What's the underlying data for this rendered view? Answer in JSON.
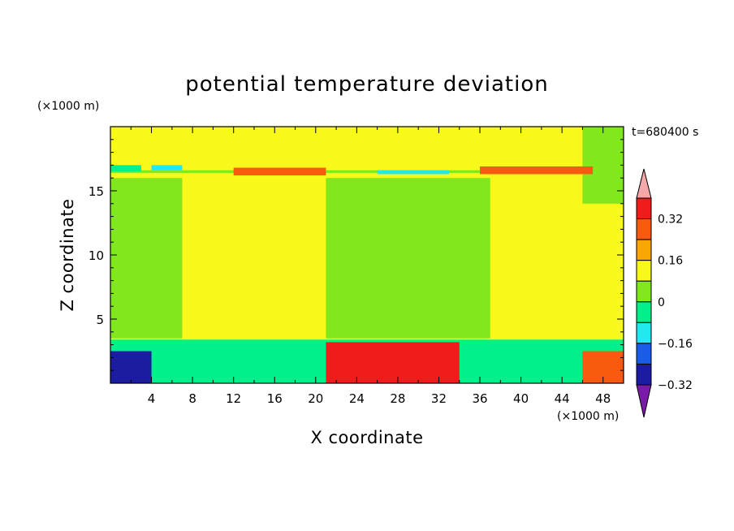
{
  "chart_data": {
    "type": "heatmap",
    "title": "potential temperature deviation",
    "xlabel": "X coordinate",
    "ylabel": "Z coordinate",
    "x_unit_label": "(×1000 m)",
    "y_unit_label": "(×1000 m)",
    "time_label": "t=680400 s",
    "xlim": [
      0,
      50
    ],
    "ylim": [
      0,
      20
    ],
    "x_ticks": [
      4,
      8,
      12,
      16,
      20,
      24,
      28,
      32,
      36,
      40,
      44,
      48
    ],
    "x_tick_labels": [
      "4",
      "8",
      "12",
      "16",
      "20",
      "24",
      "28",
      "32",
      "36",
      "40",
      "44",
      "48"
    ],
    "y_ticks": [
      5,
      10,
      15
    ],
    "y_tick_labels": [
      "5",
      "10",
      "15"
    ],
    "colorbar": {
      "levels": [
        -0.4,
        -0.32,
        -0.24,
        -0.16,
        -0.08,
        0,
        0.08,
        0.16,
        0.24,
        0.32,
        0.4
      ],
      "colors": [
        "#7a1aa8",
        "#1c1ca0",
        "#1a5ce8",
        "#22e8f0",
        "#00f08c",
        "#80e81c",
        "#f8f81a",
        "#f8a800",
        "#f85a10",
        "#f01c1c",
        "#f4a8a8"
      ],
      "tick_values": [
        0.32,
        0.16,
        0,
        -0.16,
        -0.32
      ],
      "tick_labels": [
        "0.32",
        "0.16",
        "0",
        "−0.16",
        "−0.32"
      ],
      "extend": "both"
    },
    "field_regions": [
      {
        "x_range": [
          0,
          50
        ],
        "z_range": [
          0,
          20
        ],
        "value": 0.02,
        "note": "background"
      },
      {
        "x_range": [
          21,
          37
        ],
        "z_range": [
          3.5,
          16
        ],
        "value": -0.04
      },
      {
        "x_range": [
          0,
          7
        ],
        "z_range": [
          3.5,
          16
        ],
        "value": -0.04
      },
      {
        "x_range": [
          46,
          50
        ],
        "z_range": [
          14,
          20
        ],
        "value": -0.04
      },
      {
        "x_range": [
          0,
          50
        ],
        "z_range": [
          16.4,
          16.6
        ],
        "value": -0.04
      },
      {
        "x_range": [
          0,
          3
        ],
        "z_range": [
          16.5,
          17
        ],
        "value": -0.1
      },
      {
        "x_range": [
          4,
          7
        ],
        "z_range": [
          16.6,
          17
        ],
        "value": -0.2
      },
      {
        "x_range": [
          12,
          21
        ],
        "z_range": [
          16.2,
          16.8
        ],
        "value": 0.2
      },
      {
        "x_range": [
          26,
          33
        ],
        "z_range": [
          16.3,
          16.6
        ],
        "value": -0.2
      },
      {
        "x_range": [
          36,
          47
        ],
        "z_range": [
          16.3,
          16.9
        ],
        "value": 0.2
      },
      {
        "x_range": [
          0,
          50
        ],
        "z_range": [
          0,
          3.4
        ],
        "value": -0.12
      },
      {
        "x_range": [
          21,
          34
        ],
        "z_range": [
          0,
          3.2
        ],
        "value": 0.28
      },
      {
        "x_range": [
          0,
          4
        ],
        "z_range": [
          0,
          2.5
        ],
        "value": -0.36
      },
      {
        "x_range": [
          46,
          50
        ],
        "z_range": [
          0,
          2.5
        ],
        "value": 0.2
      }
    ]
  }
}
